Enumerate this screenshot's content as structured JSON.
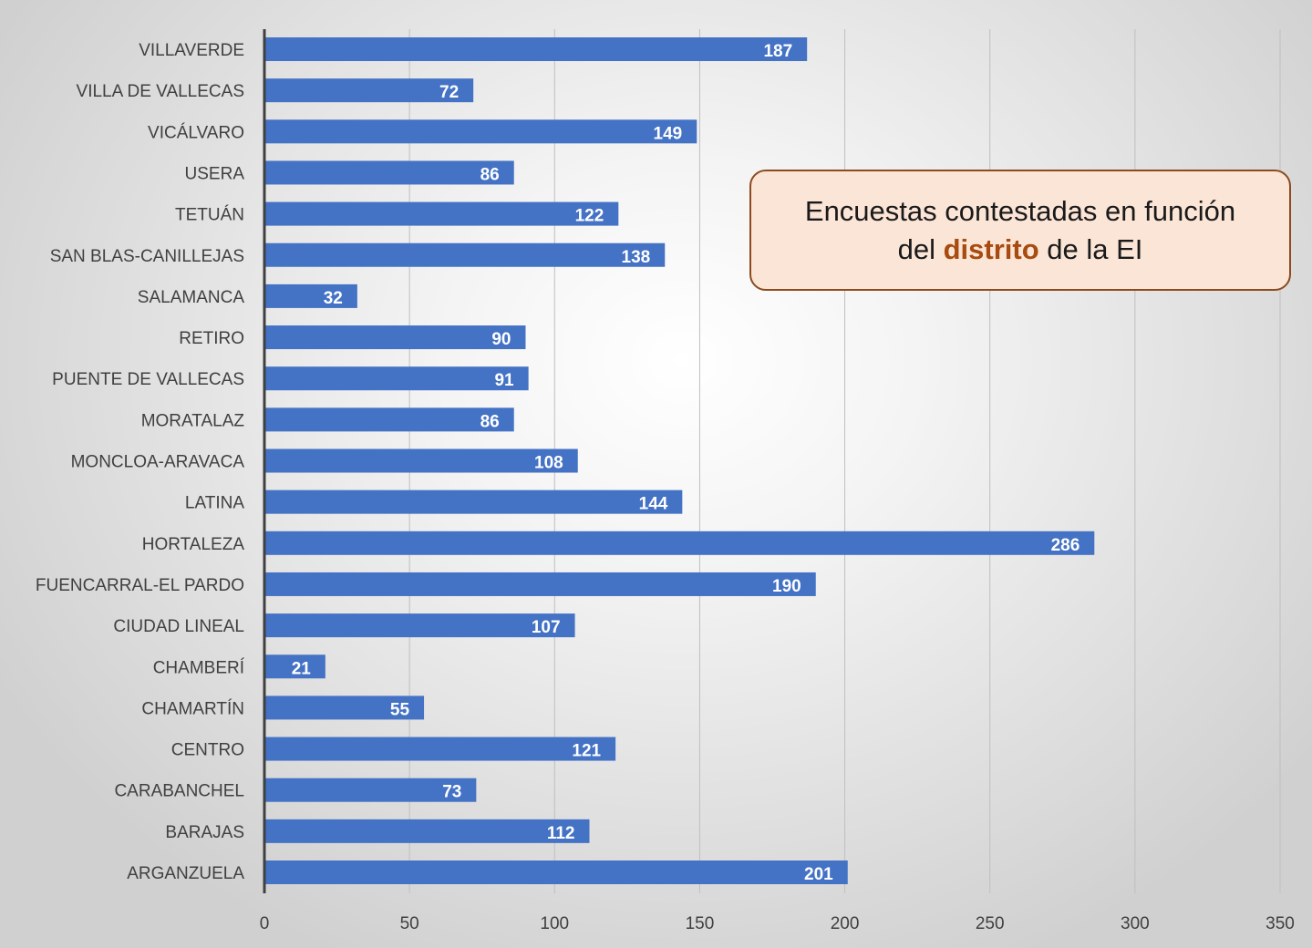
{
  "annotation": {
    "line1": "Encuestas contestadas en función",
    "line2_pre": "del ",
    "line2_highlight": "distrito",
    "line2_post": " de la EI"
  },
  "chart_data": {
    "type": "bar",
    "orientation": "horizontal",
    "categories": [
      "VILLAVERDE",
      "VILLA DE VALLECAS",
      "VICÁLVARO",
      "USERA",
      "TETUÁN",
      "SAN BLAS-CANILLEJAS",
      "SALAMANCA",
      "RETIRO",
      "PUENTE DE VALLECAS",
      "MORATALAZ",
      "MONCLOA-ARAVACA",
      "LATINA",
      "HORTALEZA",
      "FUENCARRAL-EL PARDO",
      "CIUDAD LINEAL",
      "CHAMBERÍ",
      "CHAMARTÍN",
      "CENTRO",
      "CARABANCHEL",
      "BARAJAS",
      "ARGANZUELA"
    ],
    "values": [
      187,
      72,
      149,
      86,
      122,
      138,
      32,
      90,
      91,
      86,
      108,
      144,
      286,
      190,
      107,
      21,
      55,
      121,
      73,
      112,
      201
    ],
    "xlim": [
      0,
      350
    ],
    "xticks": [
      0,
      50,
      100,
      150,
      200,
      250,
      300,
      350
    ],
    "xticklabels": [
      "0",
      "50",
      "100",
      "150",
      "200",
      "250",
      "300",
      "350"
    ],
    "grid": "vertical",
    "bar_color": "#4472c4",
    "highlight_color": "#a84b10"
  }
}
